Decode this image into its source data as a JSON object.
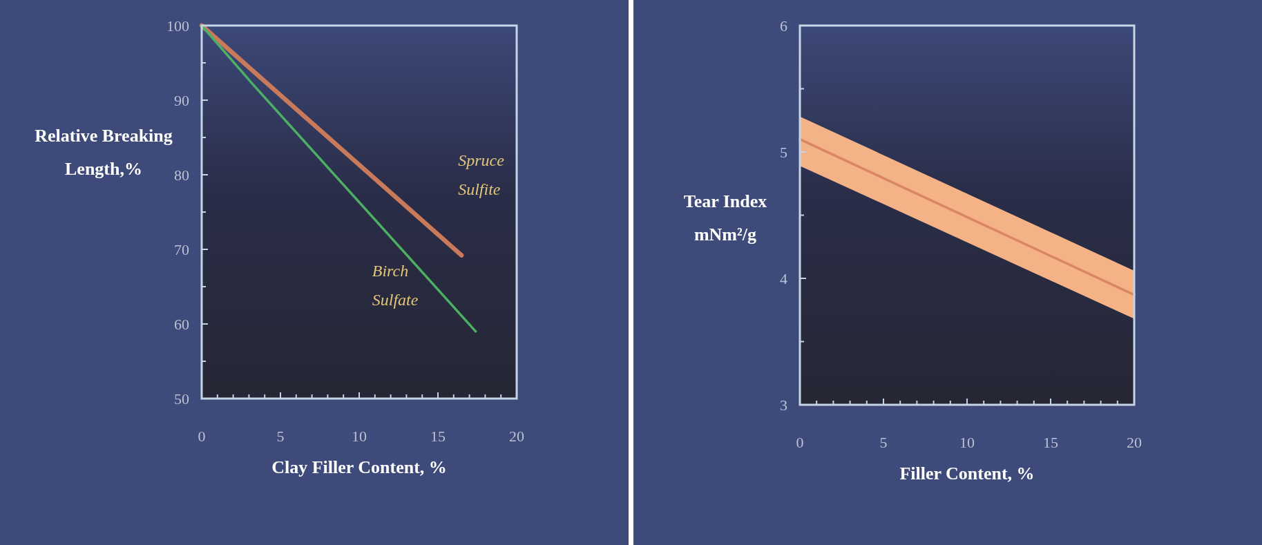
{
  "chart_data": [
    {
      "type": "line",
      "xlabel": "Clay Filler Content, %",
      "ylabel": "Relative Breaking\nLength,%",
      "xlim": [
        0,
        20
      ],
      "ylim": [
        50,
        100
      ],
      "xticks": [
        0,
        {
          "value": 1,
          "label": null
        },
        {
          "value": 2,
          "label": null
        },
        {
          "value": 3,
          "label": null
        },
        {
          "value": 4,
          "label": null
        },
        5,
        {
          "value": 6,
          "label": null
        },
        {
          "value": 7,
          "label": null
        },
        {
          "value": 8,
          "label": null
        },
        {
          "value": 9,
          "label": null
        },
        10,
        {
          "value": 11,
          "label": null
        },
        {
          "value": 12,
          "label": null
        },
        {
          "value": 13,
          "label": null
        },
        {
          "value": 14,
          "label": null
        },
        15,
        {
          "value": 16,
          "label": null
        },
        {
          "value": 17,
          "label": null
        },
        {
          "value": 18,
          "label": null
        },
        {
          "value": 19,
          "label": null
        },
        20
      ],
      "yticks": [
        50,
        {
          "value": 55,
          "label": null
        },
        60,
        {
          "value": 65,
          "label": null
        },
        70,
        {
          "value": 75,
          "label": null
        },
        80,
        {
          "value": 85,
          "label": null
        },
        90,
        {
          "value": 95,
          "label": null
        },
        100
      ],
      "series": [
        {
          "name": "Spruce\nSulfite",
          "color": "#c97a5a",
          "x": [
            0,
            16.5
          ],
          "values": [
            100,
            69.2
          ]
        },
        {
          "name": "Birch\nSulfate",
          "color": "#4caf63",
          "x": [
            0,
            3.3,
            17.4
          ],
          "values": [
            100,
            92,
            59
          ]
        }
      ]
    },
    {
      "type": "line",
      "xlabel": "Filler Content, %",
      "ylabel": "Tear Index\nmNm²/g",
      "xlim": [
        0,
        20
      ],
      "ylim": [
        3,
        6
      ],
      "xticks": [
        0,
        {
          "value": 1,
          "label": null
        },
        {
          "value": 2,
          "label": null
        },
        {
          "value": 3,
          "label": null
        },
        {
          "value": 4,
          "label": null
        },
        5,
        {
          "value": 6,
          "label": null
        },
        {
          "value": 7,
          "label": null
        },
        {
          "value": 8,
          "label": null
        },
        {
          "value": 9,
          "label": null
        },
        10,
        {
          "value": 11,
          "label": null
        },
        {
          "value": 12,
          "label": null
        },
        {
          "value": 13,
          "label": null
        },
        {
          "value": 14,
          "label": null
        },
        15,
        {
          "value": 16,
          "label": null
        },
        {
          "value": 17,
          "label": null
        },
        {
          "value": 18,
          "label": null
        },
        {
          "value": 19,
          "label": null
        },
        20
      ],
      "yticks": [
        3,
        {
          "value": 3.5,
          "label": null
        },
        4,
        {
          "value": 4.5,
          "label": null
        },
        5,
        {
          "value": 5.5,
          "label": null
        },
        6
      ],
      "series": [
        {
          "color": "#d98664",
          "x": [
            0,
            20
          ],
          "values": [
            5.1,
            3.87
          ],
          "lower": [
            4.89,
            3.68
          ],
          "upper": [
            5.28,
            4.06
          ]
        }
      ]
    }
  ]
}
